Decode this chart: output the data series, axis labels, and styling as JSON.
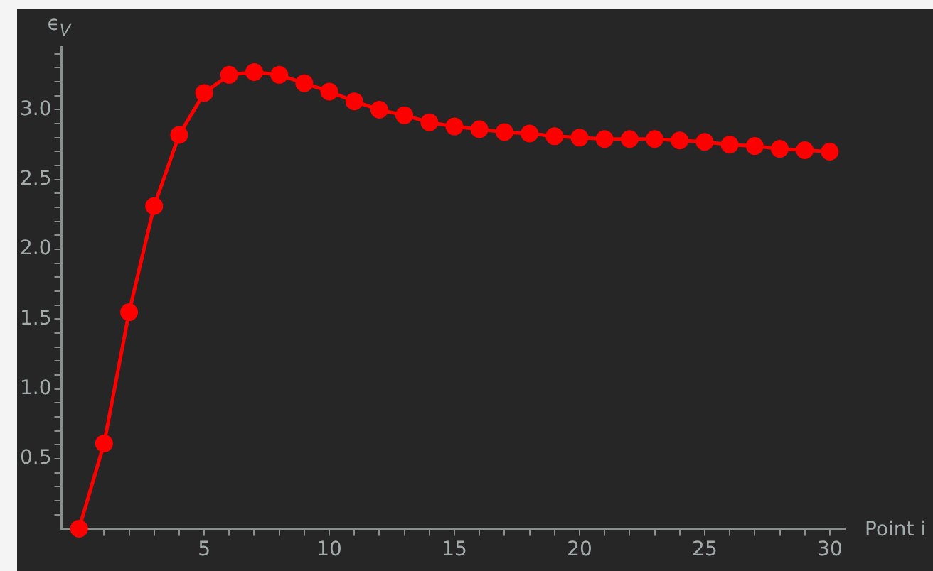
{
  "chart_data": {
    "type": "line",
    "xlabel": "Point i",
    "ylabel": "ϵ$_{V}$",
    "x": [
      0,
      1,
      2,
      3,
      4,
      5,
      6,
      7,
      8,
      9,
      10,
      11,
      12,
      13,
      14,
      15,
      16,
      17,
      18,
      19,
      20,
      21,
      22,
      23,
      24,
      25,
      26,
      27,
      28,
      29,
      30
    ],
    "series": [
      {
        "color": "#ff0000",
        "values": [
          0,
          0.61,
          1.55,
          2.31,
          2.82,
          3.12,
          3.25,
          3.27,
          3.25,
          3.19,
          3.13,
          3.06,
          3.0,
          2.96,
          2.91,
          2.88,
          2.86,
          2.84,
          2.83,
          2.81,
          2.8,
          2.79,
          2.79,
          2.79,
          2.78,
          2.77,
          2.75,
          2.74,
          2.72,
          2.71,
          2.7
        ]
      }
    ],
    "xlim": [
      -0.7,
      30.6
    ],
    "ylim": [
      0,
      3.45
    ],
    "xticks": [
      {
        "value": 1,
        "label": null
      },
      {
        "value": 2,
        "label": null
      },
      {
        "value": 3,
        "label": null
      },
      {
        "value": 4,
        "label": null
      },
      5,
      {
        "value": 6,
        "label": null
      },
      {
        "value": 7,
        "label": null
      },
      {
        "value": 8,
        "label": null
      },
      {
        "value": 9,
        "label": null
      },
      10,
      {
        "value": 11,
        "label": null
      },
      {
        "value": 12,
        "label": null
      },
      {
        "value": 13,
        "label": null
      },
      {
        "value": 14,
        "label": null
      },
      15,
      {
        "value": 16,
        "label": null
      },
      {
        "value": 17,
        "label": null
      },
      {
        "value": 18,
        "label": null
      },
      {
        "value": 19,
        "label": null
      },
      20,
      {
        "value": 21,
        "label": null
      },
      {
        "value": 22,
        "label": null
      },
      {
        "value": 23,
        "label": null
      },
      {
        "value": 24,
        "label": null
      },
      25,
      {
        "value": 26,
        "label": null
      },
      {
        "value": 27,
        "label": null
      },
      {
        "value": 28,
        "label": null
      },
      {
        "value": 29,
        "label": null
      },
      30
    ],
    "yticks": [
      {
        "value": 0.1,
        "label": null
      },
      {
        "value": 0.2,
        "label": null
      },
      {
        "value": 0.3,
        "label": null
      },
      {
        "value": 0.4,
        "label": null
      },
      {
        "value": 0.5,
        "label": "0.5"
      },
      {
        "value": 0.6,
        "label": null
      },
      {
        "value": 0.7,
        "label": null
      },
      {
        "value": 0.8,
        "label": null
      },
      {
        "value": 0.9,
        "label": null
      },
      {
        "value": 1.0,
        "label": "1.0"
      },
      {
        "value": 1.1,
        "label": null
      },
      {
        "value": 1.2,
        "label": null
      },
      {
        "value": 1.3,
        "label": null
      },
      {
        "value": 1.4,
        "label": null
      },
      {
        "value": 1.5,
        "label": "1.5"
      },
      {
        "value": 1.6,
        "label": null
      },
      {
        "value": 1.7,
        "label": null
      },
      {
        "value": 1.8,
        "label": null
      },
      {
        "value": 1.9,
        "label": null
      },
      {
        "value": 2.0,
        "label": "2.0"
      },
      {
        "value": 2.1,
        "label": null
      },
      {
        "value": 2.2,
        "label": null
      },
      {
        "value": 2.3,
        "label": null
      },
      {
        "value": 2.4,
        "label": null
      },
      {
        "value": 2.5,
        "label": "2.5"
      },
      {
        "value": 2.6,
        "label": null
      },
      {
        "value": 2.7,
        "label": null
      },
      {
        "value": 2.8,
        "label": null
      },
      {
        "value": 2.9,
        "label": null
      },
      {
        "value": 3.0,
        "label": "3.0"
      },
      {
        "value": 3.1,
        "label": null
      },
      {
        "value": 3.2,
        "label": null
      },
      {
        "value": 3.3,
        "label": null
      },
      {
        "value": 3.4,
        "label": null
      }
    ],
    "grid": false,
    "legend": false,
    "marker": "circle",
    "line_style": "solid"
  }
}
